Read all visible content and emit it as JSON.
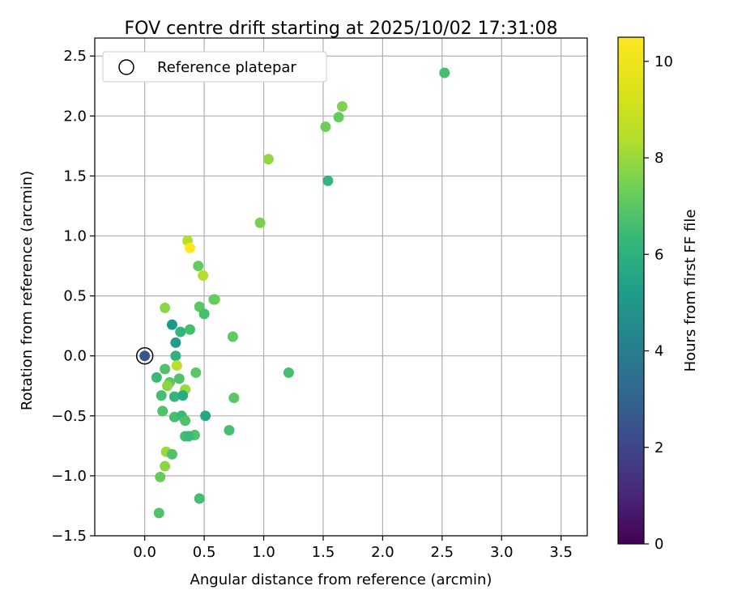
{
  "chart_data": {
    "type": "scatter",
    "title": "FOV centre drift starting at 2025/10/02 17:31:08",
    "xlabel": "Angular distance from reference (arcmin)",
    "ylabel": "Rotation from reference (arcmin)",
    "xlim": [
      -0.42,
      3.72
    ],
    "ylim": [
      -1.5,
      2.65
    ],
    "xticks": [
      0.0,
      0.5,
      1.0,
      1.5,
      2.0,
      2.5,
      3.0,
      3.5
    ],
    "xtick_labels": [
      "0.0",
      "0.5",
      "1.0",
      "1.5",
      "2.0",
      "2.5",
      "3.0",
      "3.5"
    ],
    "yticks": [
      -1.5,
      -1.0,
      -0.5,
      0.0,
      0.5,
      1.0,
      1.5,
      2.0,
      2.5
    ],
    "ytick_labels": [
      "−1.5",
      "−1.0",
      "−0.5",
      "0.0",
      "0.5",
      "1.0",
      "1.5",
      "2.0",
      "2.5"
    ],
    "grid": true,
    "legend": {
      "position": "top-left",
      "entries": [
        "Reference platepar"
      ]
    },
    "colorbar": {
      "label": "Hours from first FF file",
      "range": [
        0,
        10.5
      ],
      "ticks": [
        0,
        2,
        4,
        6,
        8,
        10
      ],
      "tick_labels": [
        "0",
        "2",
        "4",
        "6",
        "8",
        "10"
      ],
      "colormap": "viridis"
    },
    "reference_point": {
      "x": 0.0,
      "y": 0.0
    },
    "points": [
      {
        "x": 0.0,
        "y": 0.0,
        "c": 2.5
      },
      {
        "x": 2.52,
        "y": 2.36,
        "c": 6.6
      },
      {
        "x": 1.66,
        "y": 2.08,
        "c": 7.6
      },
      {
        "x": 1.63,
        "y": 1.99,
        "c": 7.2
      },
      {
        "x": 1.52,
        "y": 1.91,
        "c": 7.3
      },
      {
        "x": 1.04,
        "y": 1.64,
        "c": 7.9
      },
      {
        "x": 1.54,
        "y": 1.46,
        "c": 6.2
      },
      {
        "x": 0.97,
        "y": 1.11,
        "c": 7.5
      },
      {
        "x": 0.36,
        "y": 0.96,
        "c": 8.4
      },
      {
        "x": 0.38,
        "y": 0.9,
        "c": 10.5
      },
      {
        "x": 0.45,
        "y": 0.75,
        "c": 7.2
      },
      {
        "x": 0.49,
        "y": 0.67,
        "c": 8.4
      },
      {
        "x": 0.59,
        "y": 0.47,
        "c": 7.6
      },
      {
        "x": 0.58,
        "y": 0.47,
        "c": 7.2
      },
      {
        "x": 0.46,
        "y": 0.41,
        "c": 7.0
      },
      {
        "x": 0.17,
        "y": 0.4,
        "c": 7.8
      },
      {
        "x": 0.5,
        "y": 0.35,
        "c": 6.6
      },
      {
        "x": 0.23,
        "y": 0.26,
        "c": 5.0
      },
      {
        "x": 0.38,
        "y": 0.22,
        "c": 6.6
      },
      {
        "x": 0.3,
        "y": 0.2,
        "c": 6.2
      },
      {
        "x": 0.74,
        "y": 0.16,
        "c": 7.1
      },
      {
        "x": 0.26,
        "y": 0.11,
        "c": 5.2
      },
      {
        "x": 0.26,
        "y": 0.0,
        "c": 6.0
      },
      {
        "x": 0.27,
        "y": -0.08,
        "c": 8.6
      },
      {
        "x": 0.17,
        "y": -0.11,
        "c": 6.8
      },
      {
        "x": 0.43,
        "y": -0.14,
        "c": 7.0
      },
      {
        "x": 1.21,
        "y": -0.14,
        "c": 6.6
      },
      {
        "x": 0.1,
        "y": -0.18,
        "c": 6.4
      },
      {
        "x": 0.29,
        "y": -0.19,
        "c": 6.8
      },
      {
        "x": 0.21,
        "y": -0.22,
        "c": 7.0
      },
      {
        "x": 0.19,
        "y": -0.25,
        "c": 7.8
      },
      {
        "x": 0.34,
        "y": -0.28,
        "c": 8.0
      },
      {
        "x": 0.14,
        "y": -0.33,
        "c": 6.6
      },
      {
        "x": 0.25,
        "y": -0.34,
        "c": 6.2
      },
      {
        "x": 0.32,
        "y": -0.33,
        "c": 5.8
      },
      {
        "x": 0.75,
        "y": -0.35,
        "c": 7.0
      },
      {
        "x": 0.15,
        "y": -0.46,
        "c": 6.8
      },
      {
        "x": 0.25,
        "y": -0.51,
        "c": 6.6
      },
      {
        "x": 0.31,
        "y": -0.5,
        "c": 6.4
      },
      {
        "x": 0.51,
        "y": -0.5,
        "c": 5.6
      },
      {
        "x": 0.34,
        "y": -0.54,
        "c": 6.8
      },
      {
        "x": 0.71,
        "y": -0.62,
        "c": 6.6
      },
      {
        "x": 0.42,
        "y": -0.66,
        "c": 6.8
      },
      {
        "x": 0.34,
        "y": -0.67,
        "c": 6.6
      },
      {
        "x": 0.37,
        "y": -0.67,
        "c": 6.4
      },
      {
        "x": 0.18,
        "y": -0.8,
        "c": 8.0
      },
      {
        "x": 0.23,
        "y": -0.82,
        "c": 6.8
      },
      {
        "x": 0.17,
        "y": -0.92,
        "c": 7.8
      },
      {
        "x": 0.13,
        "y": -1.01,
        "c": 7.2
      },
      {
        "x": 0.46,
        "y": -1.19,
        "c": 6.6
      },
      {
        "x": 0.12,
        "y": -1.31,
        "c": 6.8
      }
    ]
  }
}
